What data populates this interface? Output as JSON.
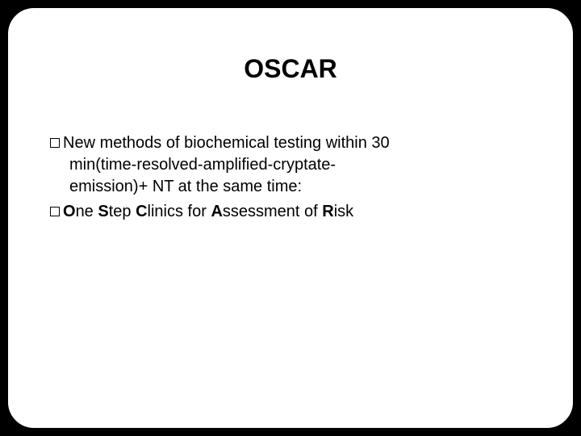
{
  "slide": {
    "title": "OSCAR",
    "bullets": [
      {
        "line1": "New methods of biochemical testing within 30",
        "line2": "min(time-resolved-amplified-cryptate-",
        "line3": "emission)+ NT at the same time:"
      },
      {
        "html_parts": {
          "p1": "O",
          "p2": "ne ",
          "p3": "S",
          "p4": "tep ",
          "p5": "C",
          "p6": "linics for ",
          "p7": "A",
          "p8": "ssessment of ",
          "p9": "R",
          "p10": "isk"
        }
      }
    ],
    "colors": {
      "background": "#000000",
      "frame_border": "#ffffff",
      "slide_bg": "#ffffff",
      "text": "#000000"
    },
    "typography": {
      "title_fontsize": 32,
      "body_fontsize": 20,
      "font_family": "Arial"
    },
    "frame": {
      "border_radius": 32,
      "border_width": 2,
      "inset": 10
    }
  }
}
